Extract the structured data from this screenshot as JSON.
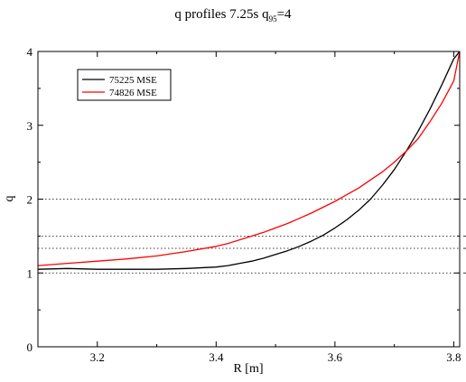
{
  "chart_data": {
    "type": "line",
    "title": {
      "main": "q profiles 7.25s q",
      "subscript": "95",
      "suffix": "=4"
    },
    "xlabel": "R [m]",
    "ylabel": "q",
    "xlim": [
      3.1,
      3.81
    ],
    "ylim": [
      0,
      4
    ],
    "xticks": [
      3.2,
      3.4,
      3.6,
      3.8
    ],
    "xtick_labels": [
      "3.2",
      "3.4",
      "3.6",
      "3.8"
    ],
    "yticks": [
      0,
      1,
      2,
      3,
      4
    ],
    "ytick_labels": [
      "0",
      "1",
      "2",
      "3",
      "4"
    ],
    "grid": false,
    "legend_position": "top-left",
    "reference_lines": {
      "style": "dotted",
      "y": [
        1.0,
        1.333,
        1.5,
        2.0
      ]
    },
    "series": [
      {
        "name": "75225 MSE",
        "color": "#000000",
        "x": [
          3.1,
          3.15,
          3.2,
          3.25,
          3.3,
          3.35,
          3.4,
          3.42,
          3.44,
          3.46,
          3.48,
          3.5,
          3.52,
          3.54,
          3.56,
          3.58,
          3.6,
          3.62,
          3.64,
          3.66,
          3.68,
          3.7,
          3.72,
          3.74,
          3.76,
          3.78,
          3.8,
          3.81
        ],
        "y": [
          1.05,
          1.06,
          1.05,
          1.05,
          1.05,
          1.06,
          1.08,
          1.1,
          1.13,
          1.16,
          1.2,
          1.25,
          1.3,
          1.36,
          1.43,
          1.51,
          1.61,
          1.72,
          1.85,
          2.0,
          2.19,
          2.4,
          2.65,
          2.92,
          3.22,
          3.55,
          3.9,
          4.0
        ]
      },
      {
        "name": "74826 MSE",
        "color": "#ff0000",
        "x": [
          3.1,
          3.15,
          3.2,
          3.25,
          3.3,
          3.35,
          3.4,
          3.42,
          3.44,
          3.46,
          3.48,
          3.5,
          3.52,
          3.54,
          3.56,
          3.58,
          3.6,
          3.62,
          3.64,
          3.66,
          3.68,
          3.7,
          3.72,
          3.74,
          3.76,
          3.78,
          3.8,
          3.81
        ],
        "y": [
          1.1,
          1.13,
          1.16,
          1.19,
          1.23,
          1.29,
          1.36,
          1.4,
          1.45,
          1.5,
          1.55,
          1.61,
          1.67,
          1.74,
          1.81,
          1.89,
          1.97,
          2.06,
          2.15,
          2.26,
          2.37,
          2.5,
          2.65,
          2.82,
          3.05,
          3.3,
          3.6,
          4.0
        ]
      }
    ]
  }
}
